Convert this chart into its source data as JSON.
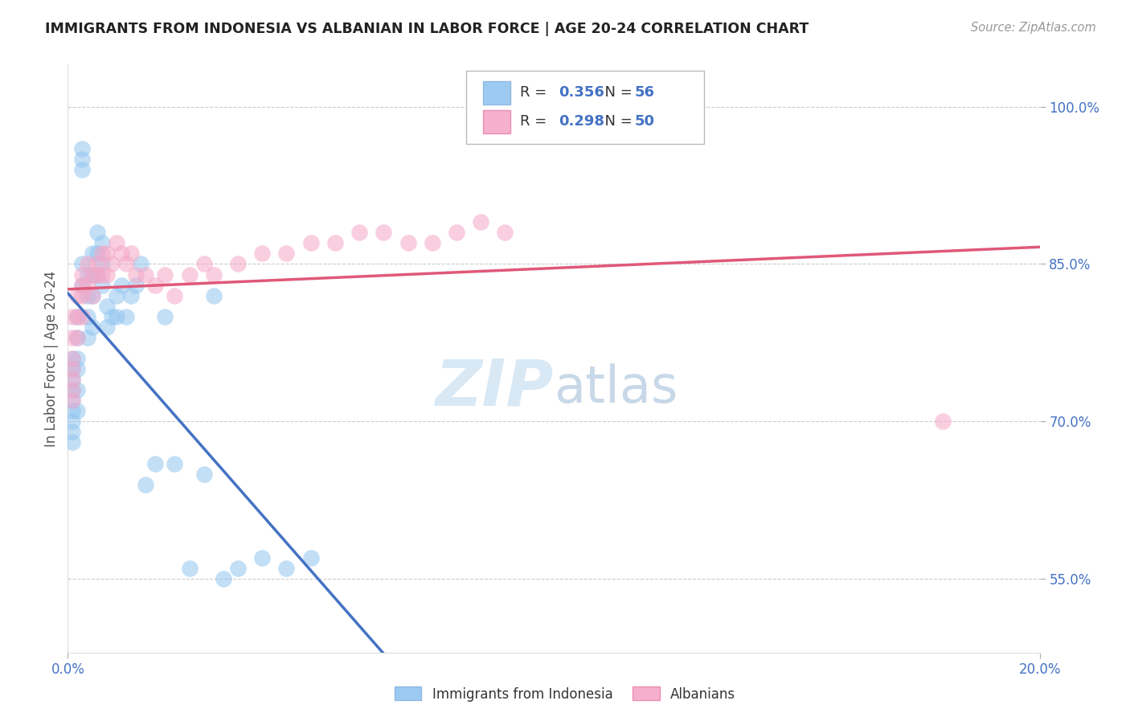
{
  "title": "IMMIGRANTS FROM INDONESIA VS ALBANIAN IN LABOR FORCE | AGE 20-24 CORRELATION CHART",
  "source": "Source: ZipAtlas.com",
  "ylabel": "In Labor Force | Age 20-24",
  "xlim": [
    0.0,
    0.2
  ],
  "ylim": [
    0.48,
    1.04
  ],
  "yticks": [
    0.55,
    0.7,
    0.85,
    1.0
  ],
  "yticklabels": [
    "55.0%",
    "70.0%",
    "85.0%",
    "100.0%"
  ],
  "xtick_positions": [
    0.0,
    0.2
  ],
  "xticklabels": [
    "0.0%",
    "20.0%"
  ],
  "R_indonesia": 0.356,
  "N_indonesia": 56,
  "R_albanian": 0.298,
  "N_albanian": 50,
  "indonesia_color": "#92C5F0",
  "albanian_color": "#F5A8C8",
  "indonesia_line_color": "#4472C4",
  "albanian_line_color": "#E05878",
  "legend_label_indonesia": "Immigrants from Indonesia",
  "legend_label_albanian": "Albanians",
  "watermark_zip": "ZIP",
  "watermark_atlas": "atlas",
  "indo_x": [
    0.001,
    0.001,
    0.001,
    0.001,
    0.001,
    0.001,
    0.001,
    0.001,
    0.001,
    0.002,
    0.002,
    0.002,
    0.002,
    0.002,
    0.002,
    0.003,
    0.003,
    0.003,
    0.003,
    0.003,
    0.004,
    0.004,
    0.004,
    0.004,
    0.005,
    0.005,
    0.005,
    0.005,
    0.006,
    0.006,
    0.006,
    0.007,
    0.007,
    0.007,
    0.008,
    0.008,
    0.009,
    0.01,
    0.01,
    0.011,
    0.012,
    0.013,
    0.014,
    0.015,
    0.016,
    0.018,
    0.02,
    0.022,
    0.025,
    0.028,
    0.03,
    0.032,
    0.035,
    0.04,
    0.045,
    0.05
  ],
  "indo_y": [
    0.76,
    0.75,
    0.74,
    0.73,
    0.72,
    0.71,
    0.7,
    0.69,
    0.68,
    0.8,
    0.78,
    0.76,
    0.75,
    0.73,
    0.71,
    0.96,
    0.95,
    0.94,
    0.85,
    0.83,
    0.84,
    0.82,
    0.8,
    0.78,
    0.86,
    0.84,
    0.82,
    0.79,
    0.88,
    0.86,
    0.84,
    0.87,
    0.85,
    0.83,
    0.81,
    0.79,
    0.8,
    0.82,
    0.8,
    0.83,
    0.8,
    0.82,
    0.83,
    0.85,
    0.64,
    0.66,
    0.8,
    0.66,
    0.56,
    0.65,
    0.82,
    0.55,
    0.56,
    0.57,
    0.56,
    0.57
  ],
  "alb_x": [
    0.001,
    0.001,
    0.001,
    0.001,
    0.001,
    0.001,
    0.001,
    0.002,
    0.002,
    0.002,
    0.003,
    0.003,
    0.003,
    0.003,
    0.004,
    0.004,
    0.005,
    0.005,
    0.006,
    0.006,
    0.007,
    0.007,
    0.008,
    0.008,
    0.009,
    0.01,
    0.011,
    0.012,
    0.013,
    0.014,
    0.016,
    0.018,
    0.02,
    0.022,
    0.025,
    0.028,
    0.03,
    0.035,
    0.04,
    0.045,
    0.05,
    0.055,
    0.06,
    0.065,
    0.07,
    0.075,
    0.08,
    0.085,
    0.09,
    0.18
  ],
  "alb_y": [
    0.8,
    0.78,
    0.76,
    0.75,
    0.74,
    0.73,
    0.72,
    0.82,
    0.8,
    0.78,
    0.84,
    0.83,
    0.82,
    0.8,
    0.85,
    0.83,
    0.84,
    0.82,
    0.85,
    0.84,
    0.86,
    0.84,
    0.86,
    0.84,
    0.85,
    0.87,
    0.86,
    0.85,
    0.86,
    0.84,
    0.84,
    0.83,
    0.84,
    0.82,
    0.84,
    0.85,
    0.84,
    0.85,
    0.86,
    0.86,
    0.87,
    0.87,
    0.88,
    0.88,
    0.87,
    0.87,
    0.88,
    0.89,
    0.88,
    0.7
  ]
}
